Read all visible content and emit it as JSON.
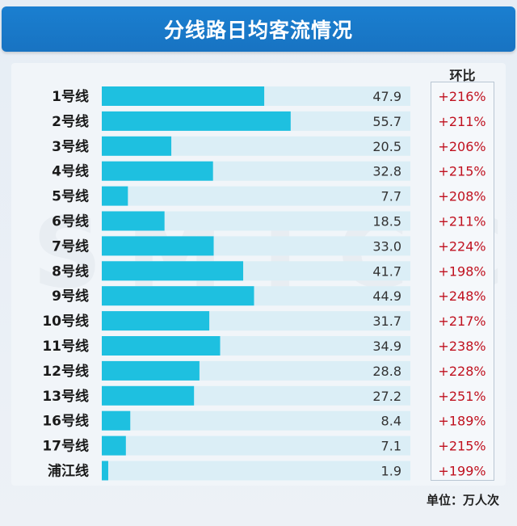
{
  "header": {
    "title": "分线路日均客流情况"
  },
  "watermark": "SMTCC",
  "ratio_header": "环比",
  "unit_label": "单位：万人次",
  "colors": {
    "bar": "#1ec0e0",
    "track": "#dbeef6",
    "ratio_text": "#c0111f",
    "label_text": "#1a1a1a"
  },
  "chart_data": {
    "type": "bar",
    "orientation": "horizontal",
    "title": "分线路日均客流情况",
    "categories": [
      "1号线",
      "2号线",
      "3号线",
      "4号线",
      "5号线",
      "6号线",
      "7号线",
      "8号线",
      "9号线",
      "10号线",
      "11号线",
      "12号线",
      "13号线",
      "16号线",
      "17号线",
      "浦江线"
    ],
    "values": [
      47.9,
      55.7,
      20.5,
      32.8,
      7.7,
      18.5,
      33.0,
      41.7,
      44.9,
      31.7,
      34.9,
      28.8,
      27.2,
      8.4,
      7.1,
      1.9
    ],
    "value_labels": [
      "47.9",
      "55.7",
      "20.5",
      "32.8",
      "7.7",
      "18.5",
      "33.0",
      "41.7",
      "44.9",
      "31.7",
      "34.9",
      "28.8",
      "27.2",
      "8.4",
      "7.1",
      "1.9"
    ],
    "ratios": [
      "+216%",
      "+211%",
      "+206%",
      "+215%",
      "+208%",
      "+211%",
      "+224%",
      "+198%",
      "+248%",
      "+217%",
      "+238%",
      "+228%",
      "+251%",
      "+189%",
      "+215%",
      "+199%"
    ],
    "xlim": [
      0,
      91
    ]
  }
}
